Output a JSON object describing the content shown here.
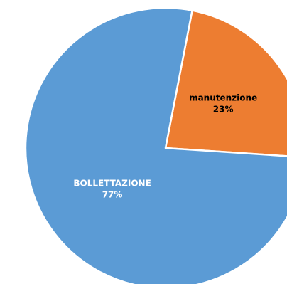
{
  "chart_data": {
    "type": "pie",
    "title": "",
    "categories": [
      "manutenzione",
      "BOLLETTAZIONE"
    ],
    "values": [
      23,
      77
    ],
    "value_labels": [
      "23%",
      "77%"
    ],
    "colors": [
      "#ED7D31",
      "#5B9BD5"
    ],
    "label_colors": [
      "#000000",
      "#ffffff"
    ],
    "start_angle_degrees": 11,
    "direction": "clockwise",
    "legend": "none"
  }
}
